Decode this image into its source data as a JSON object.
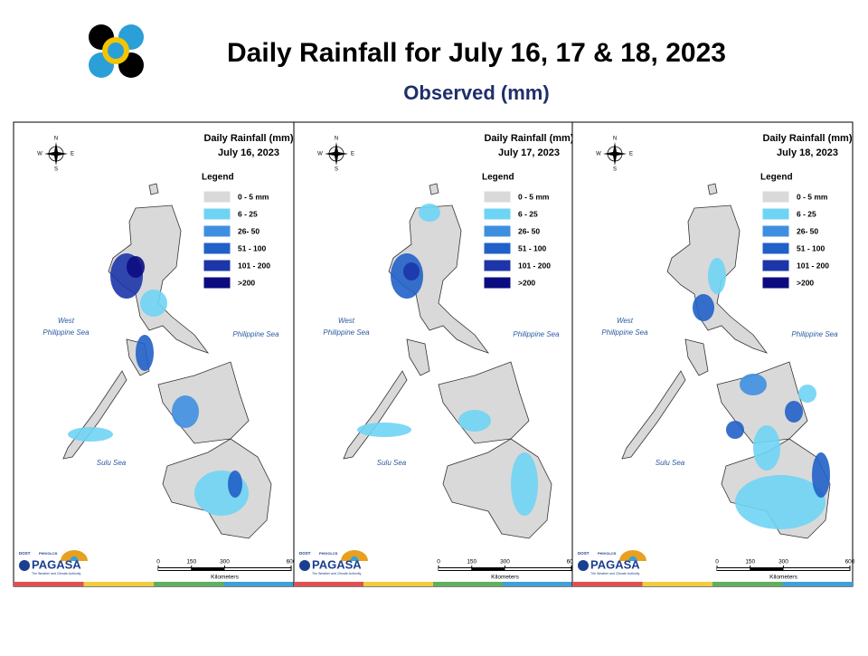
{
  "header": {
    "title": "Daily Rainfall for July 16, 17 & 18, 2023",
    "subtitle": "Observed (mm)"
  },
  "panels": [
    {
      "title": "Daily Rainfall (mm)",
      "date": "July 16, 2023"
    },
    {
      "title": "Daily Rainfall (mm)",
      "date": "July 17, 2023"
    },
    {
      "title": "Daily Rainfall (mm)",
      "date": "July 18, 2023"
    }
  ],
  "legend": {
    "title": "Legend",
    "items": [
      {
        "label": "0 - 5 mm",
        "color": "#d9d9d9"
      },
      {
        "label": "6 - 25",
        "color": "#6fd4f4"
      },
      {
        "label": "26- 50",
        "color": "#3f8fe0"
      },
      {
        "label": "51 - 100",
        "color": "#2160c8"
      },
      {
        "label": "101 - 200",
        "color": "#1c35a8"
      },
      {
        "label": ">200",
        "color": "#0c0c80"
      }
    ]
  },
  "seas": {
    "west": [
      "West",
      "Philippine Sea"
    ],
    "east": "Philippine Sea",
    "sulu": "Sulu Sea"
  },
  "compass": {
    "n": "N",
    "s": "S",
    "w": "W",
    "e": "E"
  },
  "scale": {
    "ticks": [
      0,
      150,
      300,
      600
    ],
    "unit": "Kilometers"
  },
  "branding": {
    "agency": "DOST",
    "sub": "PHIVOLCS",
    "name": "PAGASA",
    "tagline": "The Weather and Climate Authority"
  }
}
